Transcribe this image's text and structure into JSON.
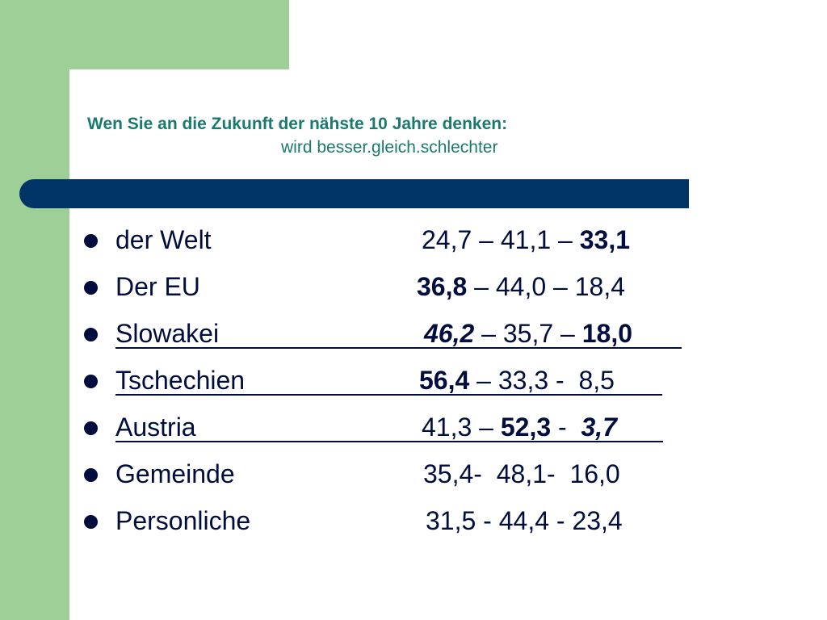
{
  "slide": {
    "title": "Wen Sie an die Zukunft der nähste 10 Jahre denken:",
    "subtitle": "wird besser.gleich.schlechter",
    "colors": {
      "accent_green": "#9dcf96",
      "navy_bar": "#003466",
      "title_teal": "#1a7a6e",
      "text_navy": "#000d3d"
    }
  },
  "rows": [
    {
      "label": "der Welt",
      "v1": "24,7",
      "s1": " – ",
      "v2": "41,1",
      "s2": " – ",
      "v3": "33,1"
    },
    {
      "label": "Der EU",
      "v1": "36,8",
      "s1": " – ",
      "v2": "44,0",
      "s2": " – ",
      "v3": "18,4"
    },
    {
      "label": "Slowakei",
      "v1": "46,2",
      "s1": " – ",
      "v2": "35,7",
      "s2": " – ",
      "v3": "18,0"
    },
    {
      "label": "Tschechien",
      "v1": "56,4",
      "s1": " – ",
      "v2": "33,3",
      "s2": " -  ",
      "v3": "8,5"
    },
    {
      "label": "Austria",
      "v1": "41,3",
      "s1": " – ",
      "v2": "52,3",
      "s2": " -  ",
      "v3": "3,7"
    },
    {
      "label": "Gemeinde",
      "v1": "35,4",
      "s1": "-  ",
      "v2": "48,1",
      "s2": "-  ",
      "v3": "16,0"
    },
    {
      "label": "Personliche",
      "v1": "31,5",
      "s1": " - ",
      "v2": "44,4",
      "s2": " - ",
      "v3": "23,4"
    }
  ]
}
